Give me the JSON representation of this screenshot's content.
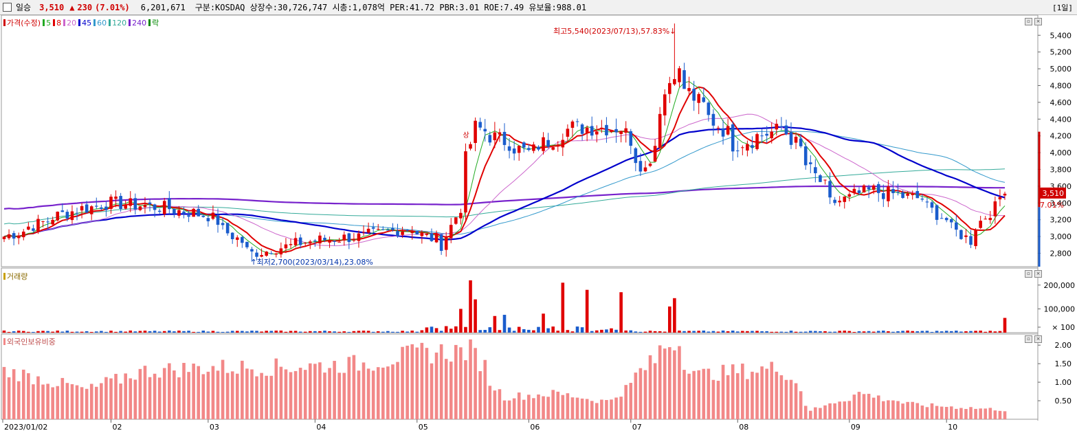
{
  "header": {
    "name": "일승",
    "price": "3,510",
    "change_arrow": "▲",
    "change": "230",
    "change_rate": "(7.01%)",
    "volume": "6,201,671",
    "info": "구분:KOSDAQ 상장수:30,726,747 시총:1,078억 PER:41.72 PBR:3.01 ROE:7.49 유보율:988.01",
    "period": "[1일]"
  },
  "legend": [
    {
      "label": "가격(수정)",
      "color": "#d00000"
    },
    {
      "label": "5",
      "color": "#22aa22"
    },
    {
      "label": "8",
      "color": "#e00000"
    },
    {
      "label": "20",
      "color": "#cc66cc"
    },
    {
      "label": "45",
      "color": "#0000cc"
    },
    {
      "label": "60",
      "color": "#3399cc"
    },
    {
      "label": "120",
      "color": "#33aa99"
    },
    {
      "label": "240",
      "color": "#7722cc"
    },
    {
      "label": "락",
      "color": "#008800"
    }
  ],
  "panels": {
    "volume_title": "거래량",
    "foreign_title": "외국인보유비중"
  },
  "chart_data": [
    {
      "type": "candlestick",
      "title": "가격(수정)",
      "annotations": {
        "high": "최고5,540(2023/07/13),57.83%",
        "low": "최저2,700(2023/03/14),23.08%",
        "current_price": "3,510",
        "current_rate": "7.01%",
        "event_marker": "상"
      },
      "y_ticks": [
        5400,
        5200,
        5000,
        4800,
        4600,
        4400,
        4200,
        4000,
        3800,
        3600,
        3400,
        3200,
        3000,
        2800
      ],
      "y_tick_labels": [
        "5,400",
        "5,200",
        "5,000",
        "4,800",
        "4,600",
        "4,400",
        "4,200",
        "4,000",
        "3,800",
        "3,600",
        "3,400",
        "3,200",
        "3,000",
        "2,800"
      ],
      "ylim": [
        2640,
        5640
      ],
      "x_labels": [
        "2023/01/02",
        "02",
        "03",
        "04",
        "05",
        "06",
        "07",
        "08",
        "09",
        "10"
      ],
      "x_label_months": [
        "2023-01",
        "2023-02",
        "2023-03",
        "2023-04",
        "2023-05",
        "2023-06",
        "2023-07",
        "2023-08",
        "2023-09",
        "2023-10"
      ],
      "period_start": "2023-01-02",
      "period_end": "2023-10-17",
      "price_checkpoints": [
        {
          "date": "2023-01-02",
          "close": 3000
        },
        {
          "date": "2023-01-20",
          "close": 3300
        },
        {
          "date": "2023-02-01",
          "close": 3400
        },
        {
          "date": "2023-02-15",
          "close": 3350
        },
        {
          "date": "2023-03-01",
          "close": 3250
        },
        {
          "date": "2023-03-14",
          "close": 2800
        },
        {
          "date": "2023-03-31",
          "close": 2950
        },
        {
          "date": "2023-04-14",
          "close": 3000
        },
        {
          "date": "2023-04-28",
          "close": 3100
        },
        {
          "date": "2023-05-08",
          "close": 2900
        },
        {
          "date": "2023-05-12",
          "close": 3350
        },
        {
          "date": "2023-05-17",
          "close": 4300
        },
        {
          "date": "2023-06-01",
          "close": 4000
        },
        {
          "date": "2023-06-14",
          "close": 4300
        },
        {
          "date": "2023-06-28",
          "close": 4300
        },
        {
          "date": "2023-07-05",
          "close": 3800
        },
        {
          "date": "2023-07-13",
          "close": 5000
        },
        {
          "date": "2023-07-20",
          "close": 4600
        },
        {
          "date": "2023-07-31",
          "close": 4100
        },
        {
          "date": "2023-08-14",
          "close": 4300
        },
        {
          "date": "2023-08-28",
          "close": 3400
        },
        {
          "date": "2023-09-08",
          "close": 3550
        },
        {
          "date": "2023-09-22",
          "close": 3450
        },
        {
          "date": "2023-10-06",
          "close": 2950
        },
        {
          "date": "2023-10-12",
          "close": 3300
        },
        {
          "date": "2023-10-17",
          "close": 3510
        }
      ],
      "series_colors": {
        "up": "#e00000",
        "down": "#1a5ccc"
      }
    },
    {
      "type": "bar",
      "title": "거래량",
      "y_ticks": [
        200000,
        100000,
        100
      ],
      "y_tick_labels": [
        "200,000",
        "100,000",
        "× 100"
      ],
      "ylim": [
        0,
        260000
      ],
      "spikes": [
        {
          "date": "2023-05-12",
          "value": 100000
        },
        {
          "date": "2023-05-16",
          "value": 220000
        },
        {
          "date": "2023-05-17",
          "value": 140000
        },
        {
          "date": "2023-05-23",
          "value": 70000
        },
        {
          "date": "2023-05-25",
          "value": 75000
        },
        {
          "date": "2023-06-06",
          "value": 80000
        },
        {
          "date": "2023-06-12",
          "value": 210000
        },
        {
          "date": "2023-06-19",
          "value": 180000
        },
        {
          "date": "2023-06-28",
          "value": 170000
        },
        {
          "date": "2023-07-12",
          "value": 110000
        },
        {
          "date": "2023-07-13",
          "value": 145000
        },
        {
          "date": "2023-10-17",
          "value": 62000
        }
      ]
    },
    {
      "type": "bar",
      "title": "외국인보유비중",
      "y_ticks": [
        2.0,
        1.5,
        1.0,
        0.5
      ],
      "y_tick_labels": [
        "2.00",
        "1.50",
        "1.00",
        "0.50"
      ],
      "ylim": [
        0,
        2.3
      ],
      "checkpoints": [
        {
          "date": "2023-01-02",
          "value": 1.3
        },
        {
          "date": "2023-01-25",
          "value": 0.8
        },
        {
          "date": "2023-02-10",
          "value": 1.3
        },
        {
          "date": "2023-03-01",
          "value": 1.4
        },
        {
          "date": "2023-03-20",
          "value": 1.4
        },
        {
          "date": "2023-04-15",
          "value": 1.5
        },
        {
          "date": "2023-05-02",
          "value": 1.8
        },
        {
          "date": "2023-05-16",
          "value": 1.85
        },
        {
          "date": "2023-05-25",
          "value": 0.6
        },
        {
          "date": "2023-06-10",
          "value": 0.7
        },
        {
          "date": "2023-06-25",
          "value": 0.45
        },
        {
          "date": "2023-07-13",
          "value": 2.15
        },
        {
          "date": "2023-07-20",
          "value": 1.2
        },
        {
          "date": "2023-08-14",
          "value": 1.4
        },
        {
          "date": "2023-08-22",
          "value": 0.25
        },
        {
          "date": "2023-09-05",
          "value": 0.7
        },
        {
          "date": "2023-09-20",
          "value": 0.4
        },
        {
          "date": "2023-10-17",
          "value": 0.25
        }
      ],
      "bar_color": "#f28888"
    }
  ]
}
